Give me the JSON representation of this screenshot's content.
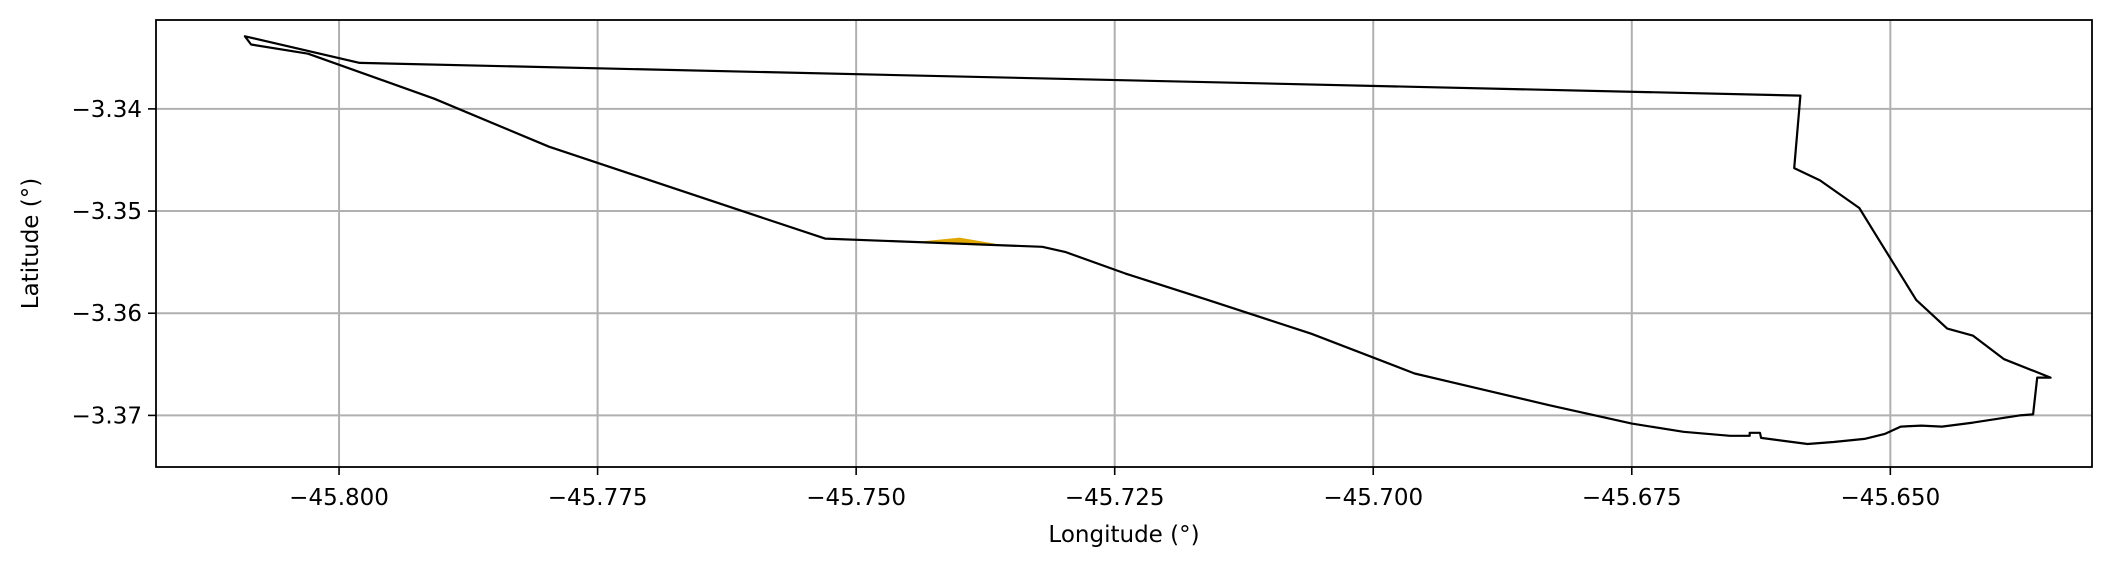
{
  "chart_data": {
    "type": "map",
    "xlabel": "Longitude (°)",
    "ylabel": "Latitude (°)",
    "xlim": [
      -45.8177,
      -45.6305
    ],
    "ylim": [
      -3.37505,
      -3.3313
    ],
    "grid": true,
    "x_ticks": [
      -45.8,
      -45.775,
      -45.75,
      -45.725,
      -45.7,
      -45.675,
      -45.65
    ],
    "x_tick_labels": [
      "−45.800",
      "−45.775",
      "−45.750",
      "−45.725",
      "−45.700",
      "−45.675",
      "−45.650"
    ],
    "y_ticks": [
      -3.34,
      -3.35,
      -3.36,
      -3.37
    ],
    "y_tick_labels": [
      "−3.34",
      "−3.35",
      "−3.36",
      "−3.37"
    ],
    "boundary": {
      "color": "#000000",
      "coordinates": [
        [
          -45.8091,
          -3.3329
        ],
        [
          -45.8085,
          -3.3337
        ],
        [
          -45.803,
          -3.3346
        ],
        [
          -45.7908,
          -3.339
        ],
        [
          -45.7797,
          -3.3437
        ],
        [
          -45.753,
          -3.3527
        ],
        [
          -45.732,
          -3.3535
        ],
        [
          -45.7298,
          -3.354
        ],
        [
          -45.724,
          -3.3561
        ],
        [
          -45.716,
          -3.3587
        ],
        [
          -45.706,
          -3.362
        ],
        [
          -45.696,
          -3.3659
        ],
        [
          -45.683,
          -3.369
        ],
        [
          -45.675,
          -3.3708
        ],
        [
          -45.67,
          -3.3716
        ],
        [
          -45.6655,
          -3.372
        ],
        [
          -45.6636,
          -3.372
        ],
        [
          -45.6636,
          -3.3717
        ],
        [
          -45.6626,
          -3.3717
        ],
        [
          -45.6625,
          -3.3722
        ],
        [
          -45.658,
          -3.3728
        ],
        [
          -45.6555,
          -3.3726
        ],
        [
          -45.6525,
          -3.3723
        ],
        [
          -45.6505,
          -3.3718
        ],
        [
          -45.649,
          -3.3711
        ],
        [
          -45.647,
          -3.371
        ],
        [
          -45.645,
          -3.3711
        ],
        [
          -45.642,
          -3.3707
        ],
        [
          -45.6375,
          -3.37
        ],
        [
          -45.6362,
          -3.3699
        ],
        [
          -45.6358,
          -3.3663
        ],
        [
          -45.6345,
          -3.3663
        ],
        [
          -45.639,
          -3.3645
        ],
        [
          -45.642,
          -3.3622
        ],
        [
          -45.6445,
          -3.3615
        ],
        [
          -45.6475,
          -3.3587
        ],
        [
          -45.6513,
          -3.3525
        ],
        [
          -45.653,
          -3.3497
        ],
        [
          -45.6568,
          -3.347
        ],
        [
          -45.6593,
          -3.3458
        ],
        [
          -45.6587,
          -3.3387
        ],
        [
          -45.798,
          -3.3355
        ],
        [
          -45.8091,
          -3.3329
        ]
      ]
    },
    "features": [
      {
        "color": "#e0a800",
        "coordinates": [
          [
            -45.744,
            -3.353
          ],
          [
            -45.74,
            -3.3526
          ],
          [
            -45.736,
            -3.3533
          ],
          [
            -45.744,
            -3.353
          ]
        ]
      }
    ]
  }
}
